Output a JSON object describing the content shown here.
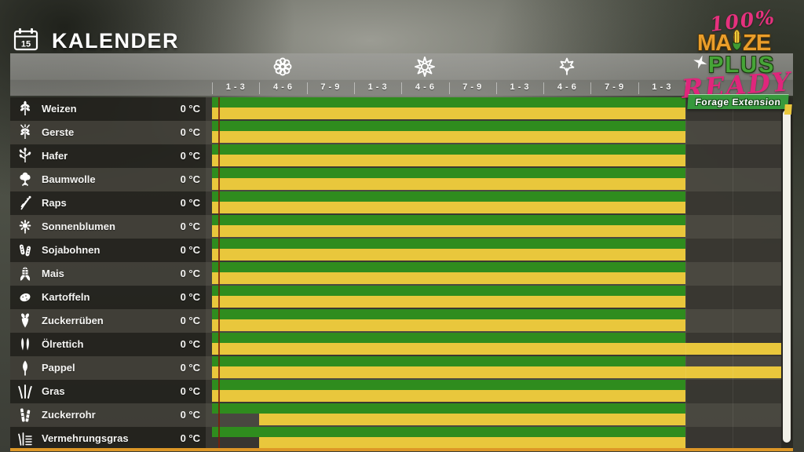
{
  "window": {
    "title": "KALENDER",
    "calendar_icon_day": "15"
  },
  "logo": {
    "line_100": "100%",
    "maize_pre": "MA",
    "maize_post": "ZE",
    "plus": "PLUS",
    "ready": "READY",
    "banner": "Forage Extension",
    "colors": {
      "pink": "#e6317e",
      "orange": "#eb9e2a",
      "green": "#46a437",
      "banner_green": "#37993d"
    }
  },
  "calendar": {
    "column_labels": [
      "1 - 3",
      "4 - 6",
      "7 - 9",
      "1 - 3",
      "4 - 6",
      "7 - 9",
      "1 - 3",
      "4 - 6",
      "7 - 9",
      "1 - 3"
    ],
    "season_icons": [
      {
        "name": "spring-flower-icon",
        "column": 1
      },
      {
        "name": "summer-sun-icon",
        "column": 4
      },
      {
        "name": "autumn-leaf-icon",
        "column": 7
      }
    ],
    "colors": {
      "plant_green": "#2f8c1e",
      "harvest_yellow": "#e9c73c",
      "day_line_red": "#7d1f0a",
      "bottom_bar_orange": "#dd9727"
    },
    "units_per_chart": 12,
    "rows": [
      {
        "name": "Weizen",
        "temp": "0 °C",
        "icon": "wheat-icon",
        "plant": [
          0,
          10
        ],
        "harvest": [
          0,
          10
        ]
      },
      {
        "name": "Gerste",
        "temp": "0 °C",
        "icon": "barley-icon",
        "plant": [
          0,
          10
        ],
        "harvest": [
          0,
          10
        ]
      },
      {
        "name": "Hafer",
        "temp": "0 °C",
        "icon": "oat-icon",
        "plant": [
          0,
          10
        ],
        "harvest": [
          0,
          10
        ]
      },
      {
        "name": "Baumwolle",
        "temp": "0 °C",
        "icon": "cotton-icon",
        "plant": [
          0,
          10
        ],
        "harvest": [
          0,
          10
        ]
      },
      {
        "name": "Raps",
        "temp": "0 °C",
        "icon": "canola-icon",
        "plant": [
          0,
          10
        ],
        "harvest": [
          0,
          10
        ]
      },
      {
        "name": "Sonnenblumen",
        "temp": "0 °C",
        "icon": "sunflower-icon",
        "plant": [
          0,
          10
        ],
        "harvest": [
          0,
          10
        ]
      },
      {
        "name": "Sojabohnen",
        "temp": "0 °C",
        "icon": "soybean-icon",
        "plant": [
          0,
          10
        ],
        "harvest": [
          0,
          10
        ]
      },
      {
        "name": "Mais",
        "temp": "0 °C",
        "icon": "corn-icon",
        "plant": [
          0,
          10
        ],
        "harvest": [
          0,
          10
        ]
      },
      {
        "name": "Kartoffeln",
        "temp": "0 °C",
        "icon": "potato-icon",
        "plant": [
          0,
          10
        ],
        "harvest": [
          0,
          10
        ]
      },
      {
        "name": "Zuckerrüben",
        "temp": "0 °C",
        "icon": "sugarbeet-icon",
        "plant": [
          0,
          10
        ],
        "harvest": [
          0,
          10
        ]
      },
      {
        "name": "Ölrettich",
        "temp": "0 °C",
        "icon": "oilradish-icon",
        "plant": [
          0,
          10
        ],
        "harvest": [
          0,
          12.03
        ]
      },
      {
        "name": "Pappel",
        "temp": "0 °C",
        "icon": "poplar-icon",
        "plant": [
          0,
          10
        ],
        "harvest": [
          0,
          12.03
        ]
      },
      {
        "name": "Gras",
        "temp": "0 °C",
        "icon": "grass-icon",
        "plant": [
          0,
          10
        ],
        "harvest": [
          0,
          10
        ]
      },
      {
        "name": "Zuckerrohr",
        "temp": "0 °C",
        "icon": "sugarcane-icon",
        "plant": [
          0,
          10
        ],
        "harvest": [
          1,
          10
        ]
      },
      {
        "name": "Vermehrungsgras",
        "temp": "0 °C",
        "icon": "meadow-grass-icon",
        "plant": [
          0,
          10
        ],
        "harvest": [
          1,
          10
        ]
      }
    ]
  }
}
